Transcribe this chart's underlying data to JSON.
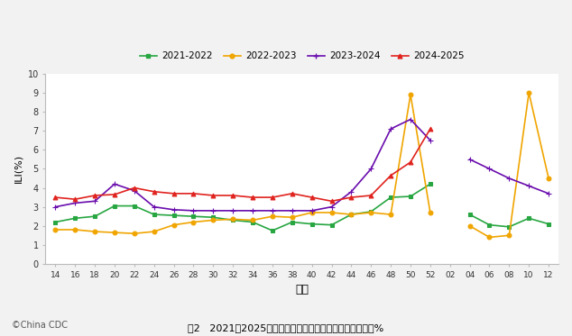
{
  "weeks_labels": [
    "14",
    "16",
    "18",
    "20",
    "22",
    "24",
    "26",
    "28",
    "30",
    "32",
    "34",
    "36",
    "38",
    "40",
    "42",
    "44",
    "46",
    "48",
    "50",
    "52",
    "02",
    "04",
    "06",
    "08",
    "10",
    "12"
  ],
  "series": {
    "2021-2022": {
      "color": "#27a641",
      "marker": "s",
      "markersize": 3.5,
      "values": [
        2.2,
        2.4,
        2.5,
        3.05,
        3.05,
        2.6,
        2.55,
        2.5,
        2.45,
        2.3,
        2.2,
        1.75,
        2.2,
        2.1,
        2.05,
        2.6,
        2.75,
        3.5,
        3.55,
        4.2,
        null,
        2.6,
        2.05,
        1.95,
        2.4,
        2.1
      ]
    },
    "2022-2023": {
      "color": "#f0a500",
      "marker": "o",
      "markersize": 3.5,
      "values": [
        1.8,
        1.8,
        1.7,
        1.65,
        1.6,
        1.7,
        2.05,
        2.2,
        2.3,
        2.35,
        2.3,
        2.5,
        2.45,
        2.7,
        2.7,
        2.6,
        2.7,
        2.6,
        8.9,
        2.7,
        null,
        2.0,
        1.4,
        1.5,
        9.0,
        4.5
      ]
    },
    "2023-2024": {
      "color": "#6a0dad",
      "marker": "+",
      "markersize": 5,
      "values": [
        3.0,
        3.2,
        3.3,
        4.2,
        3.85,
        3.0,
        2.85,
        2.8,
        2.8,
        2.8,
        2.8,
        2.8,
        2.8,
        2.8,
        3.0,
        3.8,
        5.0,
        7.1,
        7.6,
        6.5,
        null,
        5.5,
        5.0,
        4.5,
        4.1,
        3.7
      ]
    },
    "2024-2025": {
      "color": "#e0231e",
      "marker": "^",
      "markersize": 3.5,
      "values": [
        3.5,
        3.4,
        3.6,
        3.65,
        4.0,
        3.8,
        3.7,
        3.7,
        3.6,
        3.6,
        3.5,
        3.5,
        3.7,
        3.5,
        3.3,
        3.5,
        3.6,
        4.65,
        5.35,
        7.1,
        null,
        null,
        null,
        null,
        null,
        null
      ]
    }
  },
  "xlabel": "周次",
  "ylabel": "ILI(%)",
  "ylim": [
    0,
    10
  ],
  "yticks": [
    0,
    1,
    2,
    3,
    4,
    5,
    6,
    7,
    8,
    9,
    10
  ],
  "caption": "图2   2021－2025年度北方省份哨点医院报告的流感样病例%",
  "source": "©China CDC",
  "bg_color": "#f2f2f2",
  "plot_bg": "#ffffff",
  "linewidth": 1.2,
  "legend_order": [
    "2021-2022",
    "2022-2023",
    "2023-2024",
    "2024-2025"
  ]
}
